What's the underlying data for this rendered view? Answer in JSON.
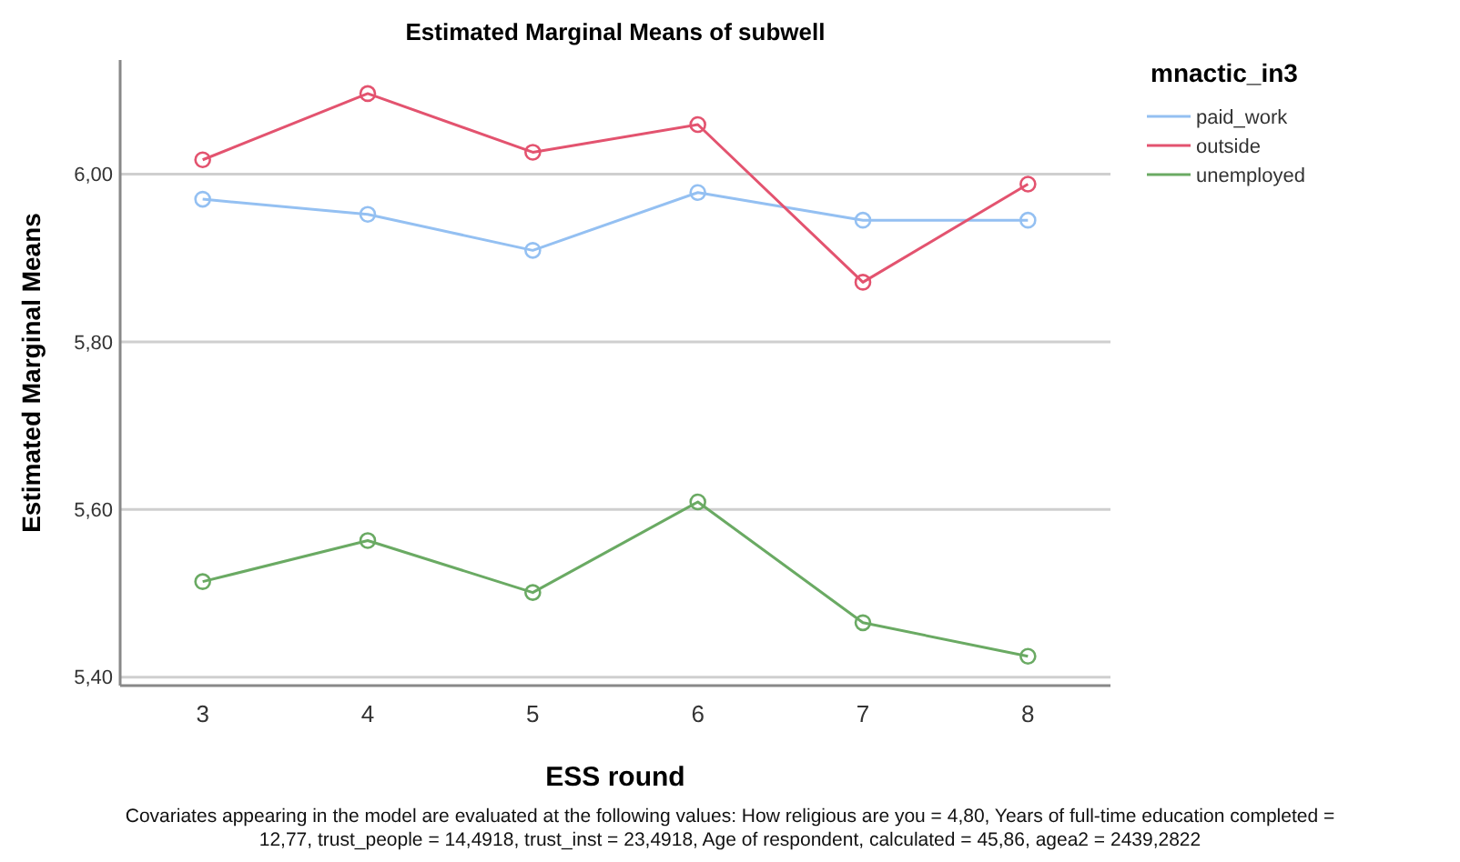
{
  "chart_data": {
    "type": "line",
    "title": "Estimated Marginal Means of subwell",
    "xlabel": "ESS round",
    "ylabel": "Estimated Marginal Means",
    "legend_title": "mnactic_in3",
    "categories": [
      "3",
      "4",
      "5",
      "6",
      "7",
      "8"
    ],
    "series": [
      {
        "name": "paid_work",
        "color": "#94c0f2",
        "values": [
          5.97,
          5.952,
          5.909,
          5.978,
          5.945,
          5.945
        ]
      },
      {
        "name": "outside",
        "color": "#e3536f",
        "values": [
          6.017,
          6.096,
          6.026,
          6.059,
          5.871,
          5.988
        ]
      },
      {
        "name": "unemployed",
        "color": "#6aaa63",
        "values": [
          5.514,
          5.563,
          5.501,
          5.609,
          5.465,
          5.425
        ]
      }
    ],
    "ylim": [
      5.39,
      6.136
    ],
    "yticks": [
      {
        "value": 5.4,
        "label": "5,40"
      },
      {
        "value": 5.6,
        "label": "5,60"
      },
      {
        "value": 5.8,
        "label": "5,80"
      },
      {
        "value": 6.0,
        "label": "6,00"
      }
    ],
    "grid": "y",
    "legend": "top right",
    "marker": "circle",
    "line_style": "solid",
    "annotations": [
      "Covariates appearing in the model are evaluated at the following values: How religious are you = 4,80, Years of full-time education completed = 12,77, trust_people = 14,4918, trust_inst = 23,4918, Age of respondent, calculated = 45,86, agea2 = 2439,2822"
    ]
  }
}
